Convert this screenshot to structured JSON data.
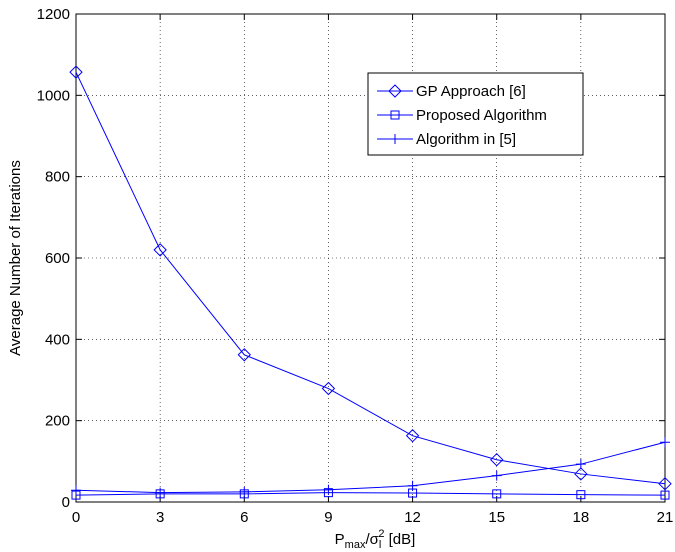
{
  "chart_data": {
    "type": "line",
    "title": "",
    "xlabel": {
      "main": "P",
      "sub1": "max",
      "slash": "/σ",
      "sub2": "l",
      "sup": "2",
      "unit": " [dB]"
    },
    "ylabel": "Average Number of Iterations",
    "x": [
      0,
      3,
      6,
      9,
      12,
      15,
      18,
      21
    ],
    "xticks": [
      "0",
      "3",
      "6",
      "9",
      "12",
      "15",
      "18",
      "21"
    ],
    "yticks": [
      "0",
      "200",
      "400",
      "600",
      "800",
      "1000",
      "1200"
    ],
    "xlim": [
      0,
      21
    ],
    "ylim": [
      0,
      1200
    ],
    "grid": true,
    "legend_position": "upper-right",
    "series_color": "#0000ff",
    "series": [
      {
        "name": "GP Approach [6]",
        "marker": "diamond",
        "values": [
          1057,
          620,
          362,
          279,
          163,
          104,
          69,
          45
        ]
      },
      {
        "name": "Proposed Algorithm",
        "marker": "square",
        "values": [
          17,
          20,
          20,
          23,
          22,
          20,
          18,
          17
        ]
      },
      {
        "name": "Algorithm in [5]",
        "marker": "plus",
        "values": [
          29,
          23,
          25,
          30,
          40,
          65,
          93,
          147
        ]
      }
    ]
  }
}
